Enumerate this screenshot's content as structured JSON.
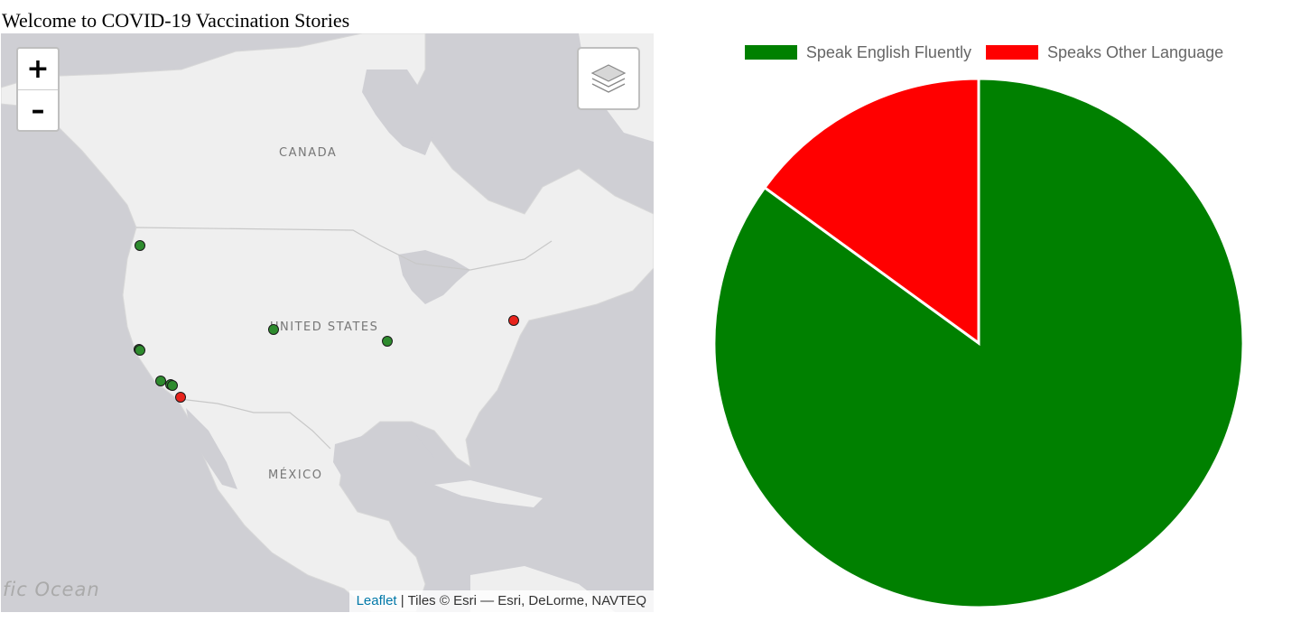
{
  "page": {
    "title": "Welcome to COVID-19 Vaccination Stories"
  },
  "map": {
    "zoom_in_label": "+",
    "zoom_out_label": "–",
    "layers_icon": "layers-icon",
    "labels": {
      "canada": "CANADA",
      "united_states": "UNITED STATES",
      "mexico": "MÉXICO",
      "ocean": "fic Ocean"
    },
    "attribution": {
      "link": "Leaflet",
      "text": " | Tiles © Esri — Esri, DeLorme, NAVTEQ"
    },
    "colors": {
      "english": "#2e8b2e",
      "other": "#e8231c",
      "water": "#cfcfd4",
      "land": "#efefef"
    }
  },
  "chart_data": {
    "type": "pie",
    "title": "",
    "legend_position": "top",
    "labels": [
      "Speak English Fluently",
      "Speaks Other Language"
    ],
    "values": [
      85,
      15
    ],
    "colors": [
      "#008000",
      "#ff0000"
    ]
  }
}
